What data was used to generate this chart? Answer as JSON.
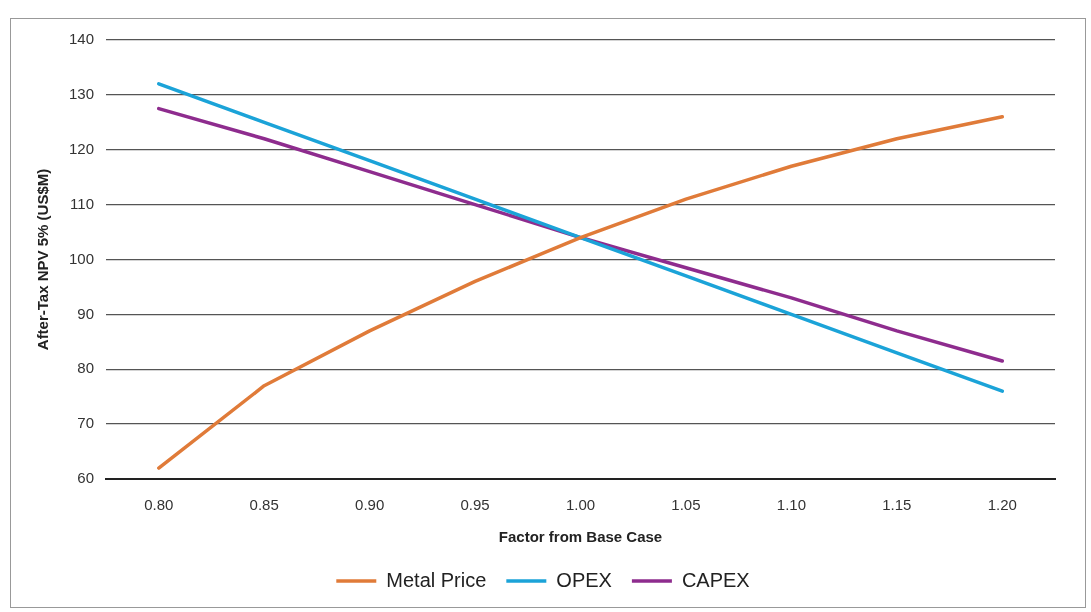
{
  "chart_data": {
    "type": "line",
    "xlabel": "Factor from Base Case",
    "ylabel": "After-Tax NPV 5% (US$M)",
    "categories": [
      "0.80",
      "0.85",
      "0.90",
      "0.95",
      "1.00",
      "1.05",
      "1.10",
      "1.15",
      "1.20"
    ],
    "series": [
      {
        "name": "Metal Price",
        "color": "#e07b39",
        "values": [
          62,
          77,
          87,
          96,
          104,
          111,
          117,
          122,
          126
        ]
      },
      {
        "name": "OPEX",
        "color": "#1ba3d8",
        "values": [
          132,
          125,
          118,
          111,
          104,
          97,
          90,
          83,
          76
        ]
      },
      {
        "name": "CAPEX",
        "color": "#8e2c8e",
        "values": [
          127.5,
          122,
          116,
          110,
          104,
          98.5,
          93,
          87,
          81.5
        ]
      }
    ],
    "ylim": [
      60,
      140
    ],
    "yticks": [
      60,
      70,
      80,
      90,
      100,
      110,
      120,
      130,
      140
    ],
    "grid": "y",
    "legend": "bottom",
    "marker": "none",
    "line_style": "solid"
  }
}
